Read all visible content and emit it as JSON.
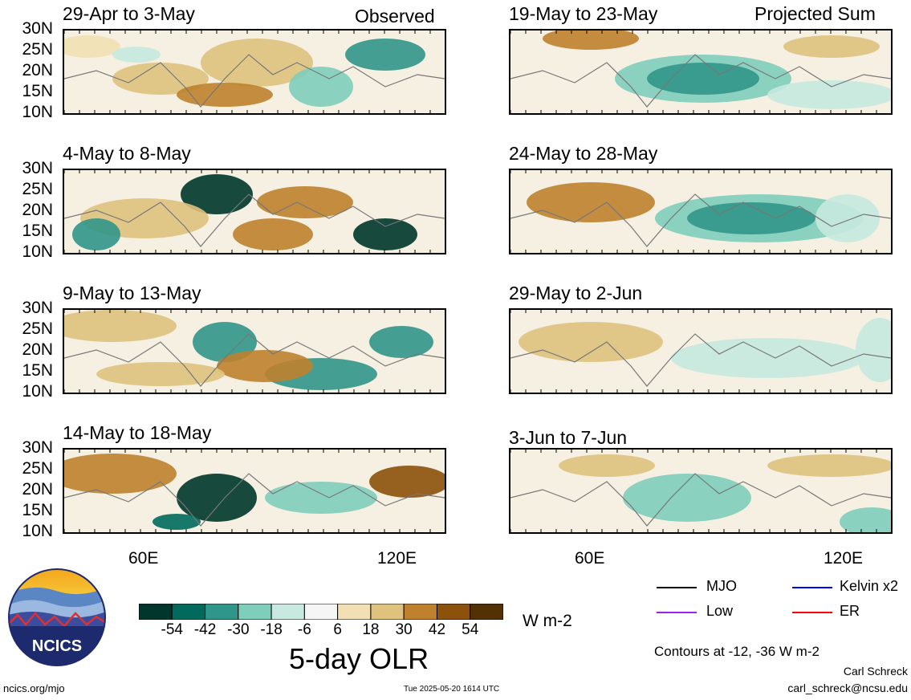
{
  "observed": {
    "label": "Observed",
    "panels": [
      {
        "title": "29-Apr to 3-May"
      },
      {
        "title": "4-May to 8-May"
      },
      {
        "title": "9-May to 13-May"
      },
      {
        "title": "14-May to 18-May"
      }
    ]
  },
  "projected": {
    "label": "Projected Sum",
    "panels": [
      {
        "title": "19-May to 23-May"
      },
      {
        "title": "24-May to 28-May"
      },
      {
        "title": "29-May to 2-Jun"
      },
      {
        "title": "3-Jun to 7-Jun"
      }
    ]
  },
  "lat_ticks": [
    "30N",
    "25N",
    "20N",
    "15N",
    "10N"
  ],
  "lon_ticks": [
    "60E",
    "120E"
  ],
  "colorbar": {
    "labels": [
      "-54",
      "-42",
      "-30",
      "-18",
      "-6",
      "6",
      "18",
      "30",
      "42",
      "54"
    ],
    "colors": [
      "#00362b",
      "#006b5d",
      "#31968a",
      "#7fcdbb",
      "#c7e9df",
      "#f5f5f5",
      "#f2e0b4",
      "#dfc27d",
      "#bf812d",
      "#8c510a",
      "#543005"
    ],
    "units": "W m-2",
    "title": "5-day OLR"
  },
  "legend": {
    "mjo": {
      "label": "MJO",
      "color": "#000000"
    },
    "kelvin": {
      "label": "Kelvin x2",
      "color": "#0000ff"
    },
    "low": {
      "label": "Low",
      "color": "#a020f0"
    },
    "er": {
      "label": "ER",
      "color": "#ff0000"
    },
    "contours": "Contours at -12, -36 W m-2"
  },
  "logo": {
    "text": "NCICS"
  },
  "footer": {
    "url": "ncics.org/mjo",
    "timestamp": "Tue 2025-05-20 1614 UTC",
    "author": "Carl Schreck",
    "email": "carl_schreck@ncsu.edu"
  }
}
